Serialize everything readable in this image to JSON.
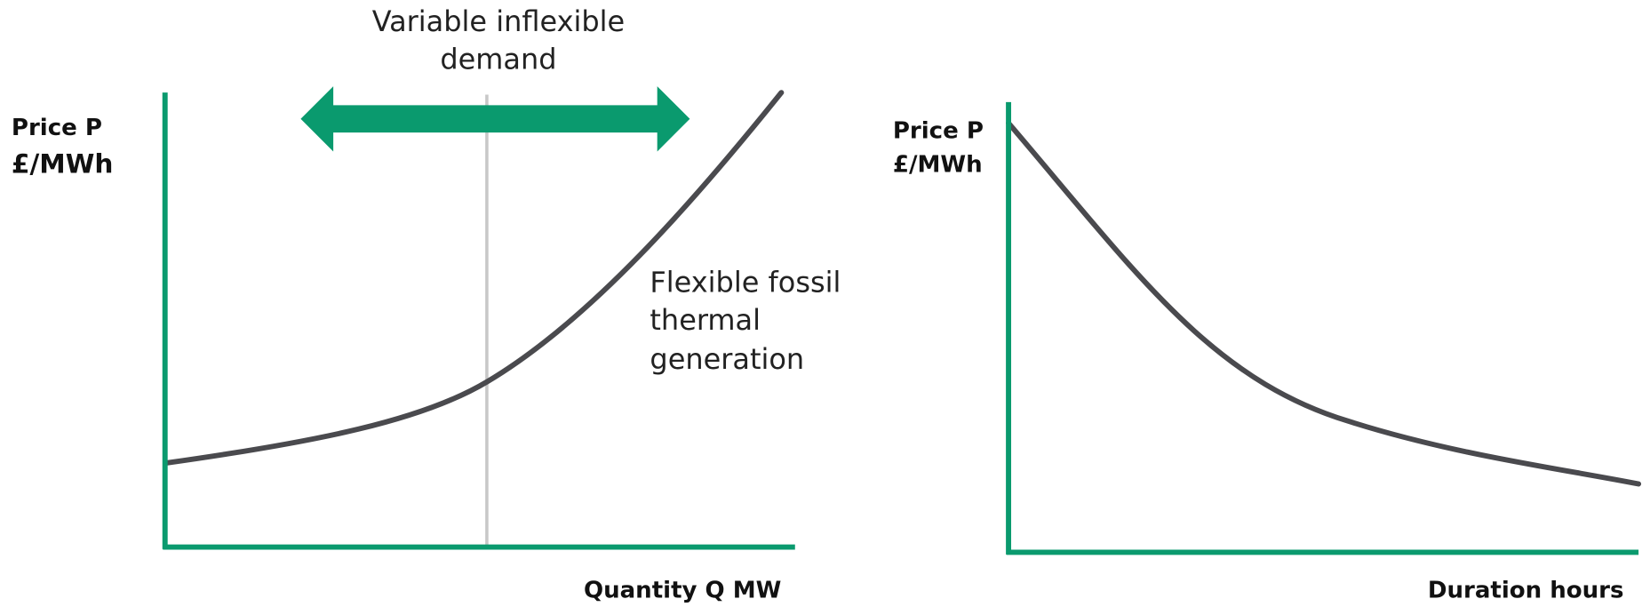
{
  "left_diagram": {
    "y_axis_label": [
      "Price P",
      "£/MWh"
    ],
    "demand_label": [
      "Variable inflexible",
      "demand"
    ],
    "supply_label": [
      "Flexible fossil",
      "thermal",
      "generation"
    ],
    "x_axis_label": "Quantity Q MW"
  },
  "right_diagram": {
    "y_axis_label": [
      "Price P",
      "£/MWh"
    ],
    "x_axis_label": "Duration hours"
  }
}
